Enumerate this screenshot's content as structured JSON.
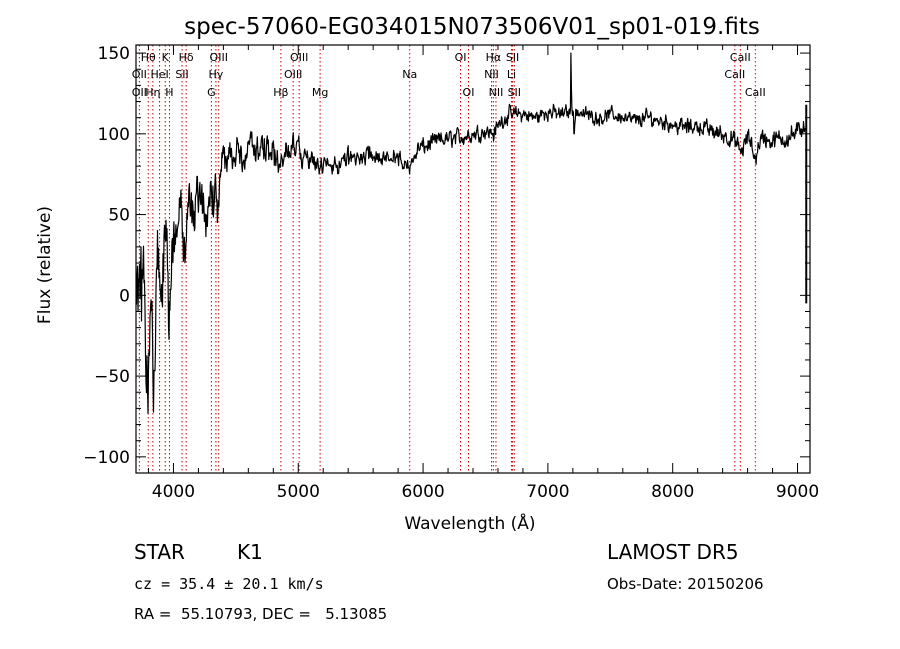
{
  "chart_data": {
    "type": "line",
    "title": "spec-57060-EG034015N073506V01_sp01-019.fits",
    "xlabel": "Wavelength (Å)",
    "ylabel": "Flux (relative)",
    "xlim": [
      3700,
      9100
    ],
    "ylim": [
      -110,
      155
    ],
    "x_ticks": [
      4000,
      5000,
      6000,
      7000,
      8000,
      9000
    ],
    "x_tick_labels": [
      "4000",
      "5000",
      "6000",
      "7000",
      "8000",
      "9000"
    ],
    "y_ticks": [
      -100,
      -50,
      0,
      50,
      100,
      150
    ],
    "y_tick_labels": [
      "−100",
      "−50",
      "0",
      "50",
      "100",
      "150"
    ],
    "grid": false,
    "legend": "none",
    "line_color": "#000000",
    "marker_color": "#cc0000",
    "spectrum_anchors": [
      [
        3700,
        30
      ],
      [
        3730,
        -5
      ],
      [
        3760,
        10
      ],
      [
        3790,
        -60
      ],
      [
        3810,
        5
      ],
      [
        3840,
        -40
      ],
      [
        3870,
        20
      ],
      [
        3900,
        -30
      ],
      [
        3930,
        30
      ],
      [
        3960,
        0
      ],
      [
        3990,
        40
      ],
      [
        4020,
        20
      ],
      [
        4050,
        50
      ],
      [
        4080,
        35
      ],
      [
        4110,
        55
      ],
      [
        4150,
        40
      ],
      [
        4200,
        60
      ],
      [
        4250,
        50
      ],
      [
        4300,
        65
      ],
      [
        4340,
        55
      ],
      [
        4380,
        75
      ],
      [
        4420,
        80
      ],
      [
        4460,
        85
      ],
      [
        4500,
        90
      ],
      [
        4550,
        85
      ],
      [
        4600,
        90
      ],
      [
        4650,
        88
      ],
      [
        4700,
        92
      ],
      [
        4750,
        90
      ],
      [
        4800,
        88
      ],
      [
        4861,
        80
      ],
      [
        4900,
        90
      ],
      [
        4950,
        92
      ],
      [
        5000,
        90
      ],
      [
        5050,
        85
      ],
      [
        5100,
        84
      ],
      [
        5150,
        82
      ],
      [
        5200,
        78
      ],
      [
        5250,
        80
      ],
      [
        5300,
        82
      ],
      [
        5400,
        84
      ],
      [
        5500,
        85
      ],
      [
        5600,
        86
      ],
      [
        5700,
        84
      ],
      [
        5800,
        86
      ],
      [
        5893,
        78
      ],
      [
        5950,
        90
      ],
      [
        6000,
        92
      ],
      [
        6100,
        95
      ],
      [
        6200,
        97
      ],
      [
        6300,
        98
      ],
      [
        6400,
        100
      ],
      [
        6500,
        102
      ],
      [
        6563,
        100
      ],
      [
        6620,
        108
      ],
      [
        6700,
        112
      ],
      [
        6800,
        112
      ],
      [
        6900,
        110
      ],
      [
        7000,
        114
      ],
      [
        7100,
        112
      ],
      [
        7200,
        115
      ],
      [
        7300,
        112
      ],
      [
        7400,
        110
      ],
      [
        7500,
        112
      ],
      [
        7600,
        110
      ],
      [
        7700,
        108
      ],
      [
        7800,
        110
      ],
      [
        7900,
        108
      ],
      [
        8000,
        106
      ],
      [
        8100,
        104
      ],
      [
        8200,
        105
      ],
      [
        8300,
        102
      ],
      [
        8400,
        100
      ],
      [
        8498,
        95
      ],
      [
        8542,
        88
      ],
      [
        8600,
        98
      ],
      [
        8662,
        85
      ],
      [
        8700,
        98
      ],
      [
        8800,
        95
      ],
      [
        8900,
        98
      ],
      [
        9000,
        100
      ],
      [
        9060,
        108
      ]
    ],
    "spectrum_noise": [
      [
        3700,
        70
      ],
      [
        3900,
        55
      ],
      [
        4100,
        40
      ],
      [
        4300,
        28
      ],
      [
        4500,
        18
      ],
      [
        5000,
        12
      ],
      [
        5900,
        10
      ],
      [
        6500,
        9
      ],
      [
        7500,
        8
      ],
      [
        8500,
        10
      ],
      [
        9060,
        12
      ]
    ],
    "spectrum_spikes": [
      {
        "x": 7185,
        "y": 150
      },
      {
        "x": 7210,
        "y": 100
      }
    ],
    "end_bar": {
      "x": 9070,
      "y_from": -5,
      "y_to": 118
    },
    "line_markers": [
      {
        "label": "Hθ",
        "x": 3798,
        "row": 1
      },
      {
        "label": "OII",
        "x": 3727,
        "row": 2
      },
      {
        "label": "OII",
        "x": 3727,
        "row": 3
      },
      {
        "label": "K",
        "x": 3934,
        "row": 1
      },
      {
        "label": "HeI",
        "x": 3889,
        "row": 2
      },
      {
        "label": "Hη",
        "x": 3835,
        "row": 3
      },
      {
        "label": "Hδ",
        "x": 4102,
        "row": 1
      },
      {
        "label": "SII",
        "x": 4069,
        "row": 2
      },
      {
        "label": "H",
        "x": 3968,
        "row": 3
      },
      {
        "label": "OIII",
        "x": 4363,
        "row": 1
      },
      {
        "label": "Hγ",
        "x": 4340,
        "row": 2
      },
      {
        "label": "G",
        "x": 4304,
        "row": 3
      },
      {
        "label": "Hβ",
        "x": 4861,
        "row": 3
      },
      {
        "label": "OIII",
        "x": 5007,
        "row": 1
      },
      {
        "label": "OIII",
        "x": 4959,
        "row": 2
      },
      {
        "label": "Mg",
        "x": 5175,
        "row": 3
      },
      {
        "label": "Na",
        "x": 5893,
        "row": 2
      },
      {
        "label": "OI",
        "x": 6300,
        "row": 1
      },
      {
        "label": "OI",
        "x": 6364,
        "row": 3
      },
      {
        "label": "Hα",
        "x": 6563,
        "row": 1
      },
      {
        "label": "NII",
        "x": 6548,
        "row": 2
      },
      {
        "label": "NII",
        "x": 6584,
        "row": 3
      },
      {
        "label": "SII",
        "x": 6717,
        "row": 1
      },
      {
        "label": "Li",
        "x": 6708,
        "row": 2
      },
      {
        "label": "SII",
        "x": 6731,
        "row": 3
      },
      {
        "label": "CaII",
        "x": 8542,
        "row": 1
      },
      {
        "label": "CaII",
        "x": 8498,
        "row": 2
      },
      {
        "label": "CaII",
        "x": 8662,
        "row": 3
      }
    ]
  },
  "info": {
    "class_label": "STAR",
    "subclass_label": "K1",
    "survey": "LAMOST DR5",
    "cz": "cz = 35.4 ± 20.1 km/s",
    "obs_date": "Obs-Date: 20150206",
    "coords": "RA =  55.10793, DEC =   5.13085"
  }
}
